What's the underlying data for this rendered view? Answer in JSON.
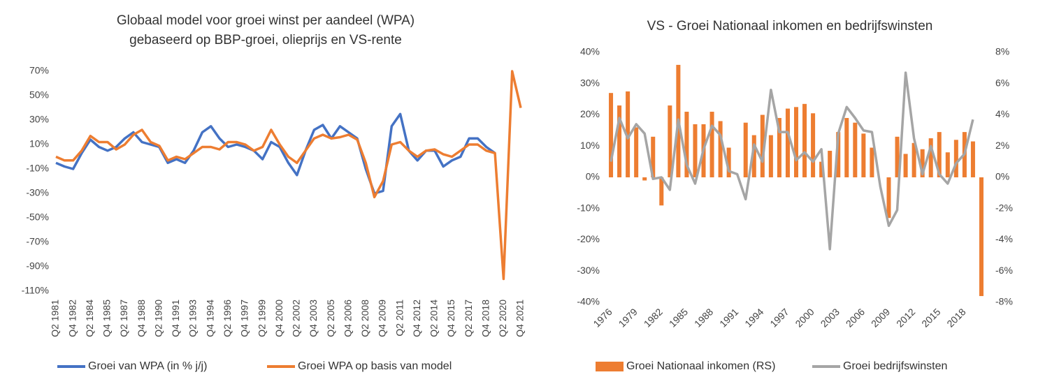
{
  "chart_data": [
    {
      "type": "line",
      "title": [
        "Globaal model voor groei winst per aandeel (WPA)",
        "gebaseerd op BBP-groei, olieprijs en VS-rente"
      ],
      "categories": [
        "Q2 1981",
        null,
        "Q4 1982",
        null,
        "Q2 1984",
        null,
        "Q4 1985",
        null,
        "Q2 1987",
        null,
        "Q4 1988",
        null,
        "Q2 1990",
        null,
        "Q4 1991",
        null,
        "Q2 1993",
        null,
        "Q4 1994",
        null,
        "Q2 1996",
        null,
        "Q4 1997",
        null,
        "Q2 1999",
        null,
        "Q4 2000",
        null,
        "Q2 2002",
        null,
        "Q4 2003",
        null,
        "Q2 2005",
        null,
        "Q4 2006",
        null,
        "Q2 2008",
        null,
        "Q4 2009",
        null,
        "Q2 2011",
        null,
        "Q4 2012",
        null,
        "Q2 2014",
        null,
        "Q4 2015",
        null,
        "Q2 2017",
        null,
        "Q4 2018",
        null,
        "Q2 2020",
        null,
        "Q4 2021"
      ],
      "series": [
        {
          "name": "Groei van WPA (in % j/j)",
          "color": "#4472c4",
          "values": [
            -5,
            -8,
            -10,
            3,
            14,
            8,
            5,
            8,
            15,
            20,
            12,
            10,
            8,
            -5,
            -2,
            -5,
            5,
            20,
            25,
            15,
            8,
            10,
            8,
            5,
            -2,
            12,
            8,
            -5,
            -15,
            5,
            22,
            26,
            15,
            25,
            20,
            15,
            -10,
            -30,
            -28,
            25,
            35,
            5,
            -3,
            5,
            5,
            -8,
            -3,
            0,
            15,
            15,
            8,
            3,
            null,
            null,
            null
          ]
        },
        {
          "name": "Groei WPA op basis van model",
          "color": "#ed7d31",
          "values": [
            0,
            -3,
            -3,
            5,
            17,
            12,
            12,
            6,
            10,
            18,
            22,
            12,
            9,
            -3,
            0,
            -2,
            3,
            8,
            8,
            6,
            12,
            12,
            10,
            5,
            8,
            22,
            10,
            0,
            -5,
            5,
            15,
            18,
            15,
            16,
            18,
            14,
            -5,
            -33,
            -20,
            10,
            12,
            5,
            0,
            5,
            6,
            2,
            0,
            5,
            10,
            10,
            5,
            3,
            -100,
            70,
            40
          ]
        }
      ],
      "ylim": [
        -110,
        70
      ],
      "yticks": [
        {
          "value": -110,
          "label": "-110%"
        },
        {
          "value": -90,
          "label": "-90%"
        },
        {
          "value": -70,
          "label": "-70%"
        },
        {
          "value": -50,
          "label": "-50%"
        },
        {
          "value": -30,
          "label": "-30%"
        },
        {
          "value": -10,
          "label": "-10%"
        },
        {
          "value": 10,
          "label": "10%"
        },
        {
          "value": 30,
          "label": "30%"
        },
        {
          "value": 50,
          "label": "50%"
        },
        {
          "value": 70,
          "label": "70%"
        }
      ],
      "grid": false
    },
    {
      "type": "bar",
      "title": [
        "VS - Groei Nationaal inkomen en bedrijfswinsten"
      ],
      "categories": [
        "1976",
        null,
        null,
        "1979",
        null,
        null,
        "1982",
        null,
        null,
        "1985",
        null,
        null,
        "1988",
        null,
        null,
        "1991",
        null,
        null,
        "1994",
        null,
        null,
        "1997",
        null,
        null,
        "2000",
        null,
        null,
        "2003",
        null,
        null,
        "2006",
        null,
        null,
        "2009",
        null,
        null,
        "2012",
        null,
        null,
        "2015",
        null,
        null,
        "2018",
        null,
        null
      ],
      "series": [
        {
          "name": "Groei Nationaal inkomen (RS)",
          "type": "bar",
          "color": "#ed7d31",
          "values": [
            27,
            23,
            27.5,
            16,
            -1,
            13,
            -9,
            23,
            36,
            21,
            17,
            17,
            21,
            18,
            9.5,
            0,
            17.5,
            13.5,
            20,
            13.5,
            19,
            22,
            22.5,
            23.5,
            20.5,
            5,
            8.5,
            14.5,
            19,
            17.5,
            14,
            9.5,
            0,
            -13,
            13,
            7.5,
            11,
            9,
            12.5,
            14.5,
            8,
            12,
            14.5,
            11.5,
            -38
          ]
        },
        {
          "name": "Groei bedrijfswinsten",
          "type": "line",
          "axis": "y2",
          "color": "#a5a5a5",
          "values": [
            1.0,
            3.8,
            2.5,
            3.4,
            2.8,
            -0.1,
            0.0,
            -0.8,
            3.7,
            0.8,
            -0.4,
            1.8,
            3.3,
            2.7,
            0.4,
            0.2,
            -1.4,
            2.1,
            1.0,
            5.6,
            2.9,
            2.9,
            1.1,
            1.6,
            1.0,
            1.8,
            -4.6,
            2.8,
            4.5,
            3.8,
            3.0,
            2.9,
            -0.6,
            -3.1,
            -2.1,
            6.7,
            2.5,
            0.2,
            2.0,
            0.2,
            -0.4,
            0.9,
            1.5,
            3.7,
            null
          ]
        }
      ],
      "ylim": [
        -40,
        40
      ],
      "yticks": [
        {
          "value": -40,
          "label": "-40%"
        },
        {
          "value": -30,
          "label": "-30%"
        },
        {
          "value": -20,
          "label": "-20%"
        },
        {
          "value": -10,
          "label": "-10%"
        },
        {
          "value": 0,
          "label": "0%"
        },
        {
          "value": 10,
          "label": "10%"
        },
        {
          "value": 20,
          "label": "20%"
        },
        {
          "value": 30,
          "label": "30%"
        },
        {
          "value": 40,
          "label": "40%"
        }
      ],
      "y2lim": [
        -8,
        8
      ],
      "y2ticks": [
        {
          "value": -8,
          "label": "-8%"
        },
        {
          "value": -6,
          "label": "-6%"
        },
        {
          "value": -4,
          "label": "-4%"
        },
        {
          "value": -2,
          "label": "-2%"
        },
        {
          "value": 0,
          "label": "0%"
        },
        {
          "value": 2,
          "label": "2%"
        },
        {
          "value": 4,
          "label": "4%"
        },
        {
          "value": 6,
          "label": "6%"
        },
        {
          "value": 8,
          "label": "8%"
        }
      ],
      "grid": false
    }
  ]
}
